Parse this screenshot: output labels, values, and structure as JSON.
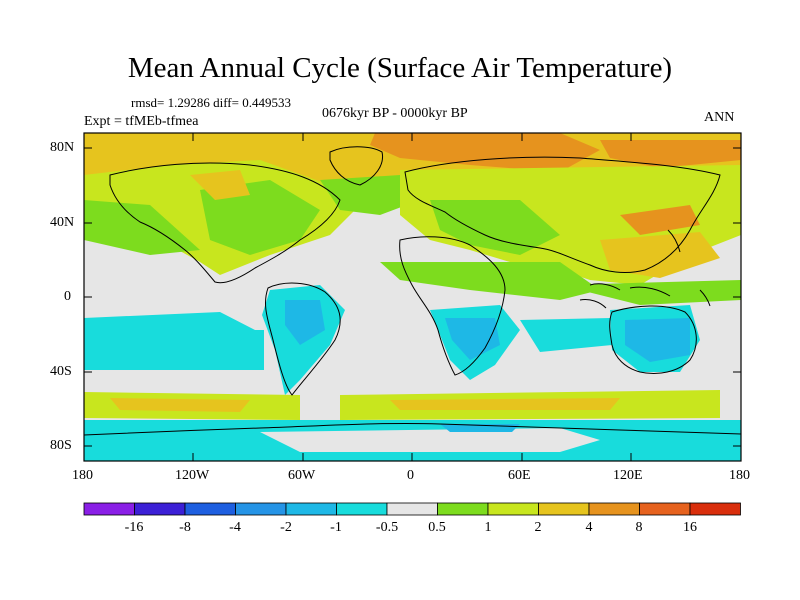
{
  "title": "Mean Annual Cycle (Surface Air Temperature)",
  "stats": {
    "rmsd_text": "rmsd= 1.29286 diff= 0.449533"
  },
  "experiment": "Expt = tfMEb-tfmea",
  "period": "0676kyr BP - 0000kyr BP",
  "season": "ANN",
  "lat_ticks": [
    "80N",
    "40N",
    "0",
    "40S",
    "80S"
  ],
  "lon_ticks": [
    "180",
    "120W",
    "60W",
    "0",
    "60E",
    "120E",
    "180"
  ],
  "colorbar": {
    "labels": [
      "-16",
      "-8",
      "-4",
      "-2",
      "-1",
      "-0.5",
      "0.5",
      "1",
      "2",
      "4",
      "8",
      "16"
    ],
    "colors": [
      "#8a1fe6",
      "#3c20d6",
      "#1e5fe0",
      "#2594e6",
      "#1eb8e6",
      "#18dcdc",
      "#e6e6e6",
      "#7ddc1e",
      "#c8e61e",
      "#e6c41e",
      "#e6931e",
      "#e6621e",
      "#d92e0c"
    ]
  },
  "map_colors": {
    "neutral": "#e6e6e6",
    "warm1": "#7ddc1e",
    "warm2": "#c8e61e",
    "warm3": "#e6c41e",
    "warm4": "#e6931e",
    "cool1": "#18dcdc",
    "cool2": "#1eb8e6",
    "cool3": "#2594e6"
  }
}
